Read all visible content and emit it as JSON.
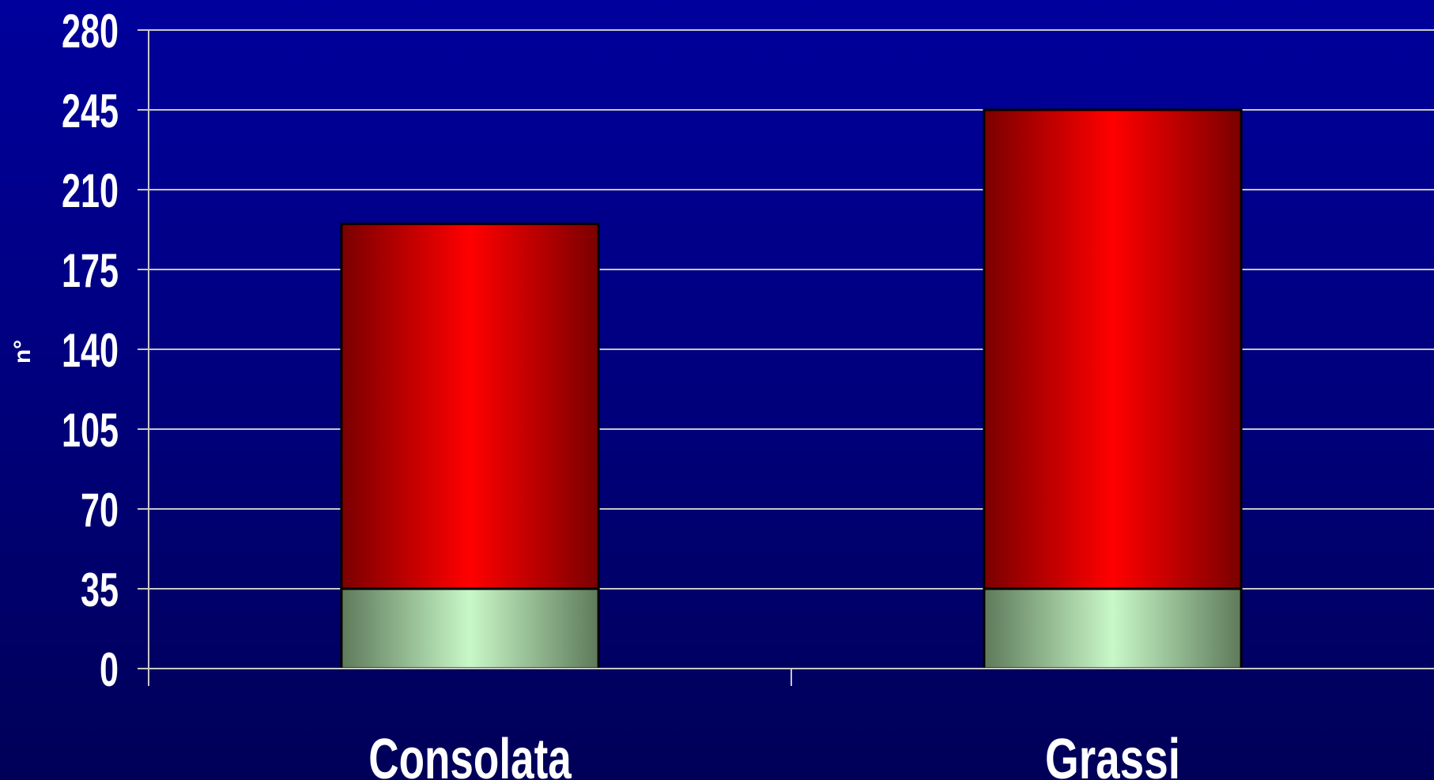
{
  "chart_data": {
    "type": "bar",
    "stacked": true,
    "categories": [
      "Consolata",
      "Grassi"
    ],
    "series": [
      {
        "values": [
          35,
          35
        ],
        "color": "#c8f8c8"
      },
      {
        "values": [
          160,
          210
        ],
        "color": "#ff0000"
      }
    ],
    "xlabel": "",
    "ylabel": "n°",
    "ylim": [
      0,
      280
    ],
    "yticks": [
      "0",
      "35",
      "70",
      "105",
      "140",
      "175",
      "210",
      "245",
      "280"
    ],
    "grid": true
  }
}
